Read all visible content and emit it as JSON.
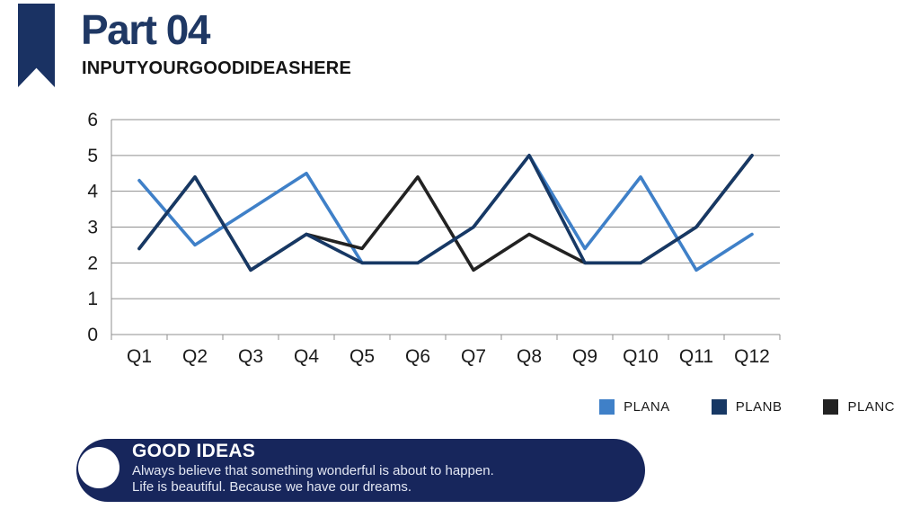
{
  "header": {
    "title": "Part 04",
    "subtitle": "INPUTYOURGOODIDEASHERE",
    "accent_color": "#1F3864"
  },
  "chart_data": {
    "type": "line",
    "title": "",
    "xlabel": "",
    "ylabel": "",
    "categories": [
      "Q1",
      "Q2",
      "Q3",
      "Q4",
      "Q5",
      "Q6",
      "Q7",
      "Q8",
      "Q9",
      "Q10",
      "Q11",
      "Q12"
    ],
    "series": [
      {
        "name": "PLANA",
        "color": "#3F80C8",
        "values": [
          4.3,
          2.5,
          3.5,
          4.5,
          2.0,
          2.0,
          3.0,
          5.0,
          2.4,
          4.4,
          1.8,
          2.8
        ]
      },
      {
        "name": "PLANB",
        "color": "#173864",
        "values": [
          2.4,
          4.4,
          1.8,
          2.8,
          2.0,
          2.0,
          3.0,
          5.0,
          2.0,
          2.0,
          3.0,
          5.0
        ]
      },
      {
        "name": "PLANC",
        "color": "#222222",
        "values": [
          2.4,
          4.4,
          1.8,
          2.8,
          2.4,
          4.4,
          1.8,
          2.8,
          2.0,
          2.0,
          3.0,
          5.0
        ]
      }
    ],
    "paint_order": [
      "PLANA",
      "PLANC",
      "PLANB"
    ],
    "ylim": [
      0,
      6
    ],
    "ytick_step": 1,
    "yticks": [
      "0",
      "1",
      "2",
      "3",
      "4",
      "5",
      "6"
    ],
    "grid": true,
    "gridline_color": "#8F8F8F",
    "axis_label_color": "#1A1A1A",
    "legend_position": "bottom-right"
  },
  "banner": {
    "title": "GOOD IDEAS",
    "line1": "Always believe that something wonderful is about to happen.",
    "line2": "Life is beautiful. Because we have our dreams.",
    "bg_color": "#17265C"
  }
}
